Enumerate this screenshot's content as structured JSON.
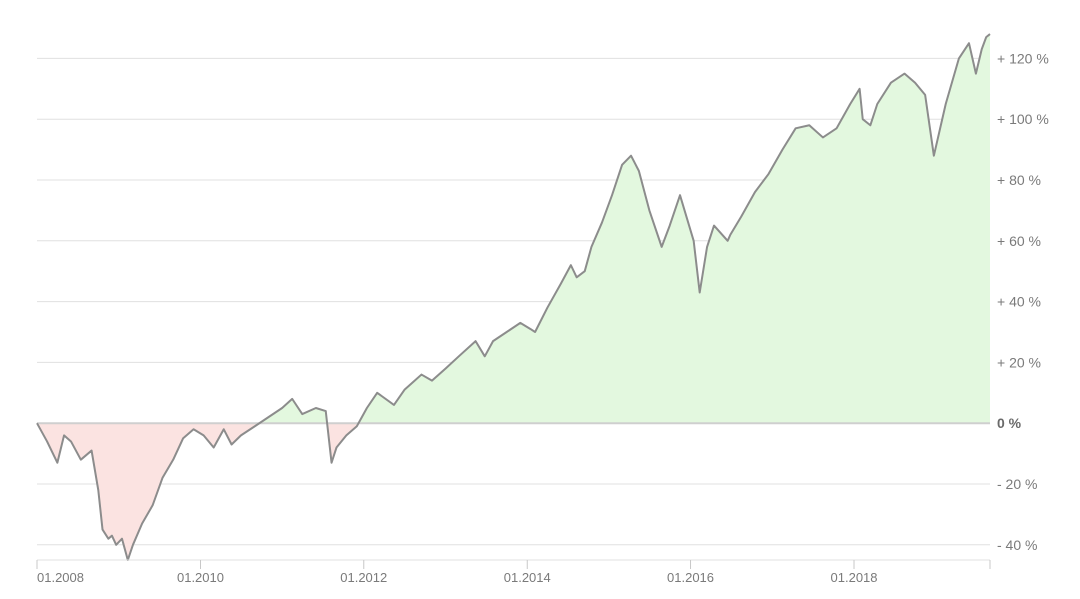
{
  "chart_data": {
    "type": "area",
    "title": "",
    "xlabel": "",
    "ylabel": "",
    "x_axis_type": "date",
    "x_range": [
      "2008-01-01",
      "2019-09-01"
    ],
    "ylim": [
      -45,
      130
    ],
    "y_ticks": [
      {
        "value": 120,
        "label": "+ 120 %"
      },
      {
        "value": 100,
        "label": "+ 100 %"
      },
      {
        "value": 80,
        "label": "+ 80 %"
      },
      {
        "value": 60,
        "label": "+ 60 %"
      },
      {
        "value": 40,
        "label": "+ 40 %"
      },
      {
        "value": 20,
        "label": "+ 20 %"
      },
      {
        "value": 0,
        "label": "0 %"
      },
      {
        "value": -20,
        "label": "- 20 %"
      },
      {
        "value": -40,
        "label": "- 40 %"
      }
    ],
    "x_ticks": [
      {
        "value": "2008-01-01",
        "label": "01.2008"
      },
      {
        "value": "2010-01-01",
        "label": "01.2010"
      },
      {
        "value": "2012-01-01",
        "label": "01.2012"
      },
      {
        "value": "2014-01-01",
        "label": "01.2014"
      },
      {
        "value": "2016-01-01",
        "label": "01.2016"
      },
      {
        "value": "2018-01-01",
        "label": "01.2018"
      }
    ],
    "grid": true,
    "legend": "none",
    "colors": {
      "line": "#8c8c8c",
      "positive_fill": "#e3f8df",
      "negative_fill": "#fbe3e1",
      "grid": "#e0e0e0",
      "zero_line": "#cfcfcf",
      "text": "#7a7a7a"
    },
    "series": [
      {
        "x": [
          "2008-01-01",
          "2008-02-15",
          "2008-04-01",
          "2008-05-01",
          "2008-06-01",
          "2008-07-15",
          "2008-09-01",
          "2008-10-01",
          "2008-10-20",
          "2008-11-15",
          "2008-12-01",
          "2008-12-20",
          "2009-01-15",
          "2009-02-10",
          "2009-03-05",
          "2009-04-15",
          "2009-06-01",
          "2009-07-15",
          "2009-09-01",
          "2009-10-15",
          "2009-12-01",
          "2010-01-15",
          "2010-03-01",
          "2010-04-15",
          "2010-05-20",
          "2010-07-01",
          "2010-09-01",
          "2010-11-01",
          "2011-01-01",
          "2011-02-15",
          "2011-04-01",
          "2011-06-01",
          "2011-07-15",
          "2011-08-10",
          "2011-09-01",
          "2011-10-15",
          "2011-12-01",
          "2012-01-15",
          "2012-03-01",
          "2012-05-15",
          "2012-07-01",
          "2012-09-15",
          "2012-11-01",
          "2013-01-01",
          "2013-03-01",
          "2013-05-15",
          "2013-06-25",
          "2013-08-01",
          "2013-10-01",
          "2013-12-01",
          "2014-01-15",
          "2014-02-05",
          "2014-04-01",
          "2014-06-01",
          "2014-07-15",
          "2014-08-10",
          "2014-09-15",
          "2014-10-15",
          "2014-12-01",
          "2015-01-15",
          "2015-03-01",
          "2015-04-10",
          "2015-05-15",
          "2015-07-01",
          "2015-08-25",
          "2015-09-30",
          "2015-11-15",
          "2016-01-15",
          "2016-02-11",
          "2016-03-15",
          "2016-04-15",
          "2016-06-15",
          "2016-06-27",
          "2016-08-15",
          "2016-10-15",
          "2016-12-15",
          "2017-02-15",
          "2017-04-15",
          "2017-06-15",
          "2017-08-15",
          "2017-10-15",
          "2017-12-15",
          "2018-01-26",
          "2018-02-09",
          "2018-03-15",
          "2018-04-15",
          "2018-06-15",
          "2018-08-15",
          "2018-10-01",
          "2018-11-15",
          "2018-12-24",
          "2019-02-15",
          "2019-04-15",
          "2019-05-30",
          "2019-06-30",
          "2019-07-26",
          "2019-08-15",
          "2019-09-01"
        ],
        "values": [
          0,
          -6,
          -13,
          -4,
          -6,
          -12,
          -9,
          -22,
          -35,
          -38,
          -37,
          -40,
          -38,
          -45,
          -40,
          -33,
          -27,
          -18,
          -12,
          -5,
          -2,
          -4,
          -8,
          -2,
          -7,
          -4,
          -1,
          2,
          5,
          8,
          3,
          5,
          4,
          -13,
          -8,
          -4,
          -1,
          5,
          10,
          6,
          11,
          16,
          14,
          18,
          22,
          27,
          22,
          27,
          30,
          33,
          31,
          30,
          38,
          46,
          52,
          48,
          50,
          58,
          66,
          75,
          85,
          88,
          83,
          70,
          58,
          65,
          75,
          60,
          43,
          58,
          65,
          60,
          62,
          68,
          76,
          82,
          90,
          97,
          98,
          94,
          97,
          105,
          110,
          100,
          98,
          105,
          112,
          115,
          112,
          108,
          88,
          105,
          120,
          125,
          115,
          123,
          127,
          128
        ]
      }
    ]
  }
}
